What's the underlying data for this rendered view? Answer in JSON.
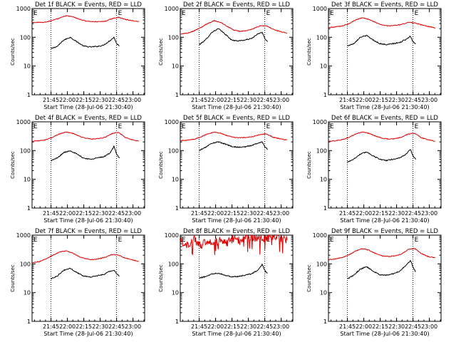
{
  "colors": {
    "background": "#ffffff",
    "axis": "#000000",
    "events": "#000000",
    "lld": "#e00000",
    "marker": "#000000"
  },
  "chart_data": [
    {
      "type": "line",
      "panel": 1,
      "title": "Det 1f BLACK = Events, RED = LLD",
      "xlabel": "Start Time (28-Jul-06 21:30:40)",
      "ylabel": "Counts/sec",
      "x_ticks": [
        "21:45",
        "22:00",
        "22:15",
        "22:30",
        "22:45",
        "23:00"
      ],
      "y_ticks": [
        "1",
        "10",
        "100",
        "1000"
      ],
      "y_scale": "log",
      "ylim": [
        1,
        1000
      ],
      "xlim_minutes": [
        -3,
        100
      ],
      "marker_lines_minutes": [
        14.3,
        74.3
      ],
      "end_labels": [
        "E",
        "E"
      ],
      "series": [
        {
          "name": "Events",
          "color": "#000000",
          "x_minutes": [
            14.3,
            20,
            26,
            32,
            38,
            44,
            50,
            56,
            62,
            68,
            72,
            74.3,
            77
          ],
          "values": [
            40,
            48,
            80,
            100,
            70,
            50,
            46,
            48,
            52,
            75,
            100,
            60,
            50
          ]
        },
        {
          "name": "LLD",
          "color": "#e00000",
          "x_minutes": [
            -3,
            4,
            10,
            16,
            22,
            28,
            34,
            40,
            46,
            52,
            58,
            64,
            70,
            76,
            82,
            88,
            95
          ],
          "values": [
            330,
            330,
            340,
            390,
            460,
            560,
            520,
            430,
            370,
            350,
            350,
            360,
            440,
            500,
            420,
            380,
            350
          ]
        }
      ]
    },
    {
      "type": "line",
      "panel": 2,
      "title": "Det 2f BLACK = Events, RED = LLD",
      "xlabel": "Start Time (28-Jul-06 21:30:40)",
      "ylabel": "Counts/sec",
      "x_ticks": [
        "21:45",
        "22:00",
        "22:15",
        "22:30",
        "22:45",
        "23:00"
      ],
      "y_ticks": [
        "1",
        "10",
        "100",
        "1000"
      ],
      "y_scale": "log",
      "ylim": [
        1,
        1000
      ],
      "xlim_minutes": [
        -3,
        100
      ],
      "marker_lines_minutes": [
        14.3,
        74.3
      ],
      "end_labels": [
        "E",
        "E"
      ],
      "series": [
        {
          "name": "Events",
          "color": "#000000",
          "x_minutes": [
            14.3,
            20,
            26,
            32,
            38,
            44,
            50,
            56,
            62,
            68,
            72,
            74.3,
            77
          ],
          "values": [
            55,
            80,
            150,
            200,
            130,
            80,
            75,
            80,
            90,
            130,
            150,
            90,
            70
          ]
        },
        {
          "name": "LLD",
          "color": "#e00000",
          "x_minutes": [
            -3,
            4,
            10,
            16,
            22,
            28,
            34,
            40,
            46,
            52,
            58,
            64,
            70,
            76,
            82,
            88,
            95
          ],
          "values": [
            130,
            140,
            170,
            220,
            300,
            380,
            330,
            240,
            180,
            160,
            170,
            200,
            250,
            250,
            190,
            160,
            140
          ]
        }
      ]
    },
    {
      "type": "line",
      "panel": 3,
      "title": "Det 3f BLACK = Events, RED = LLD",
      "xlabel": "Start Time (28-Jul-06 21:30:40)",
      "ylabel": "Counts/sec",
      "x_ticks": [
        "21:45",
        "22:00",
        "22:15",
        "22:30",
        "22:45",
        "23:00"
      ],
      "y_ticks": [
        "1",
        "10",
        "100",
        "1000"
      ],
      "y_scale": "log",
      "ylim": [
        1,
        1000
      ],
      "xlim_minutes": [
        -3,
        100
      ],
      "marker_lines_minutes": [
        14.3,
        74.3
      ],
      "end_labels": [
        "E",
        "E"
      ],
      "series": [
        {
          "name": "Events",
          "color": "#000000",
          "x_minutes": [
            14.3,
            20,
            26,
            32,
            38,
            44,
            50,
            56,
            62,
            68,
            72,
            74.3,
            77
          ],
          "values": [
            50,
            60,
            100,
            115,
            80,
            60,
            55,
            60,
            65,
            85,
            110,
            70,
            60
          ]
        },
        {
          "name": "LLD",
          "color": "#e00000",
          "x_minutes": [
            -3,
            4,
            10,
            16,
            22,
            28,
            34,
            40,
            46,
            52,
            58,
            64,
            70,
            76,
            82,
            88,
            95
          ],
          "values": [
            220,
            230,
            250,
            300,
            400,
            480,
            420,
            330,
            270,
            250,
            260,
            280,
            330,
            320,
            270,
            240,
            210
          ]
        }
      ]
    },
    {
      "type": "line",
      "panel": 4,
      "title": "Det 4f BLACK = Events, RED = LLD",
      "xlabel": "Start Time (28-Jul-06 21:30:40)",
      "ylabel": "Counts/sec",
      "x_ticks": [
        "21:45",
        "22:00",
        "22:15",
        "22:30",
        "22:45",
        "23:00"
      ],
      "y_ticks": [
        "1",
        "10",
        "100",
        "1000"
      ],
      "y_scale": "log",
      "ylim": [
        1,
        1000
      ],
      "xlim_minutes": [
        -3,
        100
      ],
      "marker_lines_minutes": [
        14.3,
        74.3
      ],
      "end_labels": [
        "E",
        "E"
      ],
      "series": [
        {
          "name": "Events",
          "color": "#000000",
          "x_minutes": [
            14.3,
            20,
            26,
            32,
            38,
            44,
            50,
            56,
            62,
            68,
            72,
            74.3,
            77
          ],
          "values": [
            45,
            55,
            85,
            100,
            75,
            55,
            50,
            55,
            60,
            80,
            140,
            75,
            55
          ]
        },
        {
          "name": "LLD",
          "color": "#e00000",
          "x_minutes": [
            -3,
            4,
            10,
            16,
            22,
            28,
            34,
            40,
            46,
            52,
            58,
            64,
            70,
            76,
            82,
            88,
            95
          ],
          "values": [
            210,
            220,
            240,
            290,
            380,
            440,
            400,
            320,
            270,
            250,
            260,
            290,
            390,
            430,
            290,
            240,
            210
          ]
        }
      ]
    },
    {
      "type": "line",
      "panel": 5,
      "title": "Det 5f BLACK = Events, RED = LLD",
      "xlabel": "Start Time (28-Jul-06 21:30:40)",
      "ylabel": "Counts/sec",
      "x_ticks": [
        "21:45",
        "22:00",
        "22:15",
        "22:30",
        "22:45",
        "23:00"
      ],
      "y_ticks": [
        "1",
        "10",
        "100",
        "1000"
      ],
      "y_scale": "log",
      "ylim": [
        1,
        1000
      ],
      "xlim_minutes": [
        -3,
        100
      ],
      "marker_lines_minutes": [
        14.3,
        74.3
      ],
      "end_labels": [
        "E",
        "E"
      ],
      "series": [
        {
          "name": "Events",
          "color": "#000000",
          "x_minutes": [
            14.3,
            20,
            26,
            32,
            38,
            44,
            50,
            56,
            62,
            68,
            72,
            74.3,
            77
          ],
          "values": [
            100,
            130,
            180,
            200,
            170,
            140,
            130,
            135,
            150,
            180,
            200,
            140,
            110
          ]
        },
        {
          "name": "LLD",
          "color": "#e00000",
          "x_minutes": [
            -3,
            4,
            10,
            16,
            22,
            28,
            34,
            40,
            46,
            52,
            58,
            64,
            70,
            76,
            82,
            88,
            95
          ],
          "values": [
            220,
            230,
            250,
            300,
            380,
            440,
            400,
            330,
            290,
            280,
            290,
            310,
            360,
            380,
            290,
            260,
            230
          ]
        }
      ]
    },
    {
      "type": "line",
      "panel": 6,
      "title": "Det 6f BLACK = Events, RED = LLD",
      "xlabel": "Start Time (28-Jul-06 21:30:40)",
      "ylabel": "Counts/sec",
      "x_ticks": [
        "21:45",
        "22:00",
        "22:15",
        "22:30",
        "22:45",
        "23:00"
      ],
      "y_ticks": [
        "1",
        "10",
        "100",
        "1000"
      ],
      "y_scale": "log",
      "ylim": [
        1,
        1000
      ],
      "xlim_minutes": [
        -3,
        100
      ],
      "marker_lines_minutes": [
        14.3,
        74.3
      ],
      "end_labels": [
        "E",
        "E"
      ],
      "series": [
        {
          "name": "Events",
          "color": "#000000",
          "x_minutes": [
            14.3,
            20,
            26,
            32,
            38,
            44,
            50,
            56,
            62,
            68,
            72,
            74.3,
            77
          ],
          "values": [
            40,
            50,
            75,
            90,
            65,
            50,
            45,
            50,
            55,
            75,
            110,
            65,
            50
          ]
        },
        {
          "name": "LLD",
          "color": "#e00000",
          "x_minutes": [
            -3,
            4,
            10,
            16,
            22,
            28,
            34,
            40,
            46,
            52,
            58,
            64,
            70,
            76,
            82,
            88,
            95
          ],
          "values": [
            210,
            220,
            240,
            290,
            380,
            440,
            400,
            320,
            270,
            250,
            260,
            290,
            380,
            400,
            280,
            240,
            210
          ]
        }
      ]
    },
    {
      "type": "line",
      "panel": 7,
      "title": "Det 7f BLACK = Events, RED = LLD",
      "xlabel": "Start Time (28-Jul-06 21:30:40)",
      "ylabel": "Counts/sec",
      "x_ticks": [
        "21:45",
        "22:00",
        "22:15",
        "22:30",
        "22:45",
        "23:00"
      ],
      "y_ticks": [
        "1",
        "10",
        "100",
        "1000"
      ],
      "y_scale": "log",
      "ylim": [
        1,
        1000
      ],
      "xlim_minutes": [
        -3,
        100
      ],
      "marker_lines_minutes": [
        14.3,
        74.3
      ],
      "end_labels": [
        "E",
        "E"
      ],
      "series": [
        {
          "name": "Events",
          "color": "#000000",
          "x_minutes": [
            14.3,
            20,
            26,
            32,
            38,
            44,
            50,
            56,
            62,
            68,
            72,
            74.3,
            77
          ],
          "values": [
            30,
            38,
            60,
            70,
            50,
            38,
            35,
            38,
            42,
            55,
            60,
            45,
            38
          ]
        },
        {
          "name": "LLD",
          "color": "#e00000",
          "x_minutes": [
            -3,
            4,
            10,
            16,
            22,
            28,
            34,
            40,
            46,
            52,
            58,
            64,
            70,
            76,
            82,
            88,
            95
          ],
          "values": [
            110,
            120,
            150,
            200,
            260,
            280,
            240,
            180,
            150,
            140,
            150,
            170,
            210,
            200,
            160,
            140,
            120
          ]
        }
      ]
    },
    {
      "type": "line",
      "panel": 8,
      "title": "Det 8f BLACK = Events, RED = LLD",
      "xlabel": "Start Time (28-Jul-06 21:30:40)",
      "ylabel": "Counts/sec",
      "x_ticks": [
        "21:45",
        "22:00",
        "22:15",
        "22:30",
        "22:45",
        "23:00"
      ],
      "y_ticks": [
        "1",
        "10",
        "100",
        "1000"
      ],
      "y_scale": "log",
      "ylim": [
        1,
        1000
      ],
      "xlim_minutes": [
        -3,
        100
      ],
      "marker_lines_minutes": [
        14.3,
        74.3
      ],
      "end_labels": [
        "E",
        "E"
      ],
      "series": [
        {
          "name": "Events",
          "color": "#000000",
          "x_minutes": [
            14.3,
            20,
            26,
            32,
            38,
            44,
            50,
            56,
            62,
            68,
            72,
            74.3,
            77
          ],
          "values": [
            32,
            36,
            45,
            48,
            40,
            36,
            36,
            40,
            45,
            60,
            95,
            60,
            45
          ]
        },
        {
          "name": "LLD",
          "color": "#e00000",
          "x_minutes": [
            -3,
            4,
            10,
            16,
            22,
            28,
            34,
            40,
            46,
            52,
            58,
            64,
            70,
            76,
            82,
            88,
            95
          ],
          "values": [
            600,
            450,
            700,
            420,
            650,
            500,
            750,
            550,
            800,
            650,
            900,
            700,
            850,
            750,
            950,
            800,
            700
          ]
        }
      ]
    },
    {
      "type": "line",
      "panel": 9,
      "title": "Det 9f BLACK = Events, RED = LLD",
      "xlabel": "Start Time (28-Jul-06 21:30:40)",
      "ylabel": "Counts/sec",
      "x_ticks": [
        "21:45",
        "22:00",
        "22:15",
        "22:30",
        "22:45",
        "23:00"
      ],
      "y_ticks": [
        "1",
        "10",
        "100",
        "1000"
      ],
      "y_scale": "log",
      "ylim": [
        1,
        1000
      ],
      "xlim_minutes": [
        -3,
        100
      ],
      "marker_lines_minutes": [
        14.3,
        74.3
      ],
      "end_labels": [
        "E",
        "E"
      ],
      "series": [
        {
          "name": "Events",
          "color": "#000000",
          "x_minutes": [
            14.3,
            20,
            26,
            32,
            38,
            44,
            50,
            56,
            62,
            68,
            72,
            74.3,
            77
          ],
          "values": [
            30,
            40,
            65,
            80,
            55,
            42,
            40,
            45,
            55,
            90,
            130,
            80,
            50
          ]
        },
        {
          "name": "LLD",
          "color": "#e00000",
          "x_minutes": [
            -3,
            4,
            10,
            16,
            22,
            28,
            34,
            40,
            46,
            52,
            58,
            64,
            70,
            76,
            82,
            88,
            95
          ],
          "values": [
            140,
            150,
            170,
            210,
            280,
            340,
            300,
            230,
            190,
            180,
            190,
            220,
            320,
            340,
            230,
            180,
            160
          ]
        }
      ]
    }
  ]
}
